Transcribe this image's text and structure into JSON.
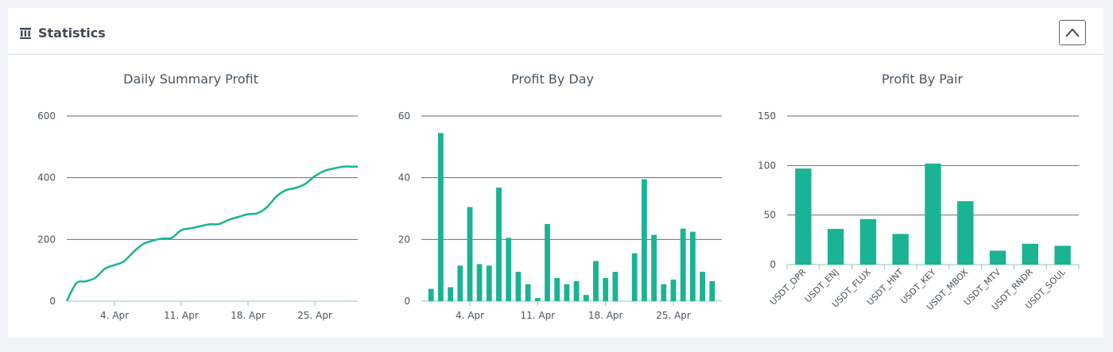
{
  "panel": {
    "title": "Statistics",
    "icon": "bank-icon",
    "collapse_icon": "chevron-up-icon"
  },
  "colors": {
    "series": "#1ab394",
    "grid": "#666e76",
    "text": "#4a5561",
    "header_border": "#cfdedc"
  },
  "chart_data": [
    {
      "type": "line",
      "title": "Daily Summary Profit",
      "ylim": [
        0,
        600
      ],
      "yticks": [
        0,
        200,
        400,
        600
      ],
      "xlim": [
        "2022-03-30",
        "2022-04-30"
      ],
      "xticks": [
        "4. Apr",
        "11. Apr",
        "18. Apr",
        "25. Apr"
      ],
      "xtick_dates": [
        "2022-04-04",
        "2022-04-11",
        "2022-04-18",
        "2022-04-25"
      ],
      "grid": true,
      "series": [
        {
          "x": [
            "2022-03-30",
            "2022-03-31",
            "2022-04-01",
            "2022-04-02",
            "2022-04-03",
            "2022-04-04",
            "2022-04-05",
            "2022-04-06",
            "2022-04-07",
            "2022-04-08",
            "2022-04-09",
            "2022-04-10",
            "2022-04-11",
            "2022-04-12",
            "2022-04-13",
            "2022-04-14",
            "2022-04-15",
            "2022-04-16",
            "2022-04-17",
            "2022-04-18",
            "2022-04-19",
            "2022-04-20",
            "2022-04-21",
            "2022-04-22",
            "2022-04-23",
            "2022-04-24",
            "2022-04-25",
            "2022-04-26",
            "2022-04-27",
            "2022-04-28",
            "2022-04-29",
            "2022-04-30"
          ],
          "values": [
            0,
            58,
            64,
            76,
            105,
            117,
            129,
            160,
            185,
            196,
            203,
            205,
            230,
            236,
            243,
            249,
            250,
            264,
            273,
            282,
            285,
            305,
            340,
            360,
            367,
            380,
            405,
            422,
            430,
            436,
            436,
            436
          ]
        }
      ]
    },
    {
      "type": "bar",
      "title": "Profit By Day",
      "ylim": [
        0,
        60
      ],
      "yticks": [
        0,
        20,
        40,
        60
      ],
      "xlim": [
        "2022-03-30",
        "2022-04-30"
      ],
      "xticks": [
        "4. Apr",
        "11. Apr",
        "18. Apr",
        "25. Apr"
      ],
      "xtick_dates": [
        "2022-04-04",
        "2022-04-11",
        "2022-04-18",
        "2022-04-25"
      ],
      "grid": true,
      "x": [
        "2022-03-31",
        "2022-04-01",
        "2022-04-02",
        "2022-04-03",
        "2022-04-04",
        "2022-04-05",
        "2022-04-06",
        "2022-04-07",
        "2022-04-08",
        "2022-04-09",
        "2022-04-10",
        "2022-04-11",
        "2022-04-12",
        "2022-04-13",
        "2022-04-14",
        "2022-04-15",
        "2022-04-16",
        "2022-04-17",
        "2022-04-18",
        "2022-04-19",
        "2022-04-20",
        "2022-04-21",
        "2022-04-22",
        "2022-04-23",
        "2022-04-24",
        "2022-04-25",
        "2022-04-26",
        "2022-04-27",
        "2022-04-28",
        "2022-04-29"
      ],
      "values": [
        4,
        54.5,
        4.5,
        11.5,
        30.5,
        12,
        11.5,
        36.8,
        20.5,
        9.5,
        5.5,
        1,
        25,
        7.5,
        5.5,
        6.5,
        2,
        13,
        7.5,
        9.5,
        0,
        15.5,
        39.5,
        21.5,
        5.5,
        7,
        23.5,
        22.5,
        9.5,
        6.5
      ]
    },
    {
      "type": "bar",
      "title": "Profit By Pair",
      "ylim": [
        0,
        150
      ],
      "yticks": [
        0,
        50,
        100,
        150
      ],
      "grid": true,
      "categories": [
        "USDT_DPR",
        "USDT_ENJ",
        "USDT_FLUX",
        "USDT_HNT",
        "USDT_KEY",
        "USDT_MBOX",
        "USDT_MTV",
        "USDT_RNDR",
        "USDT_SOUL"
      ],
      "values": [
        97,
        36,
        46,
        31,
        102,
        64,
        14,
        21,
        19
      ]
    }
  ]
}
